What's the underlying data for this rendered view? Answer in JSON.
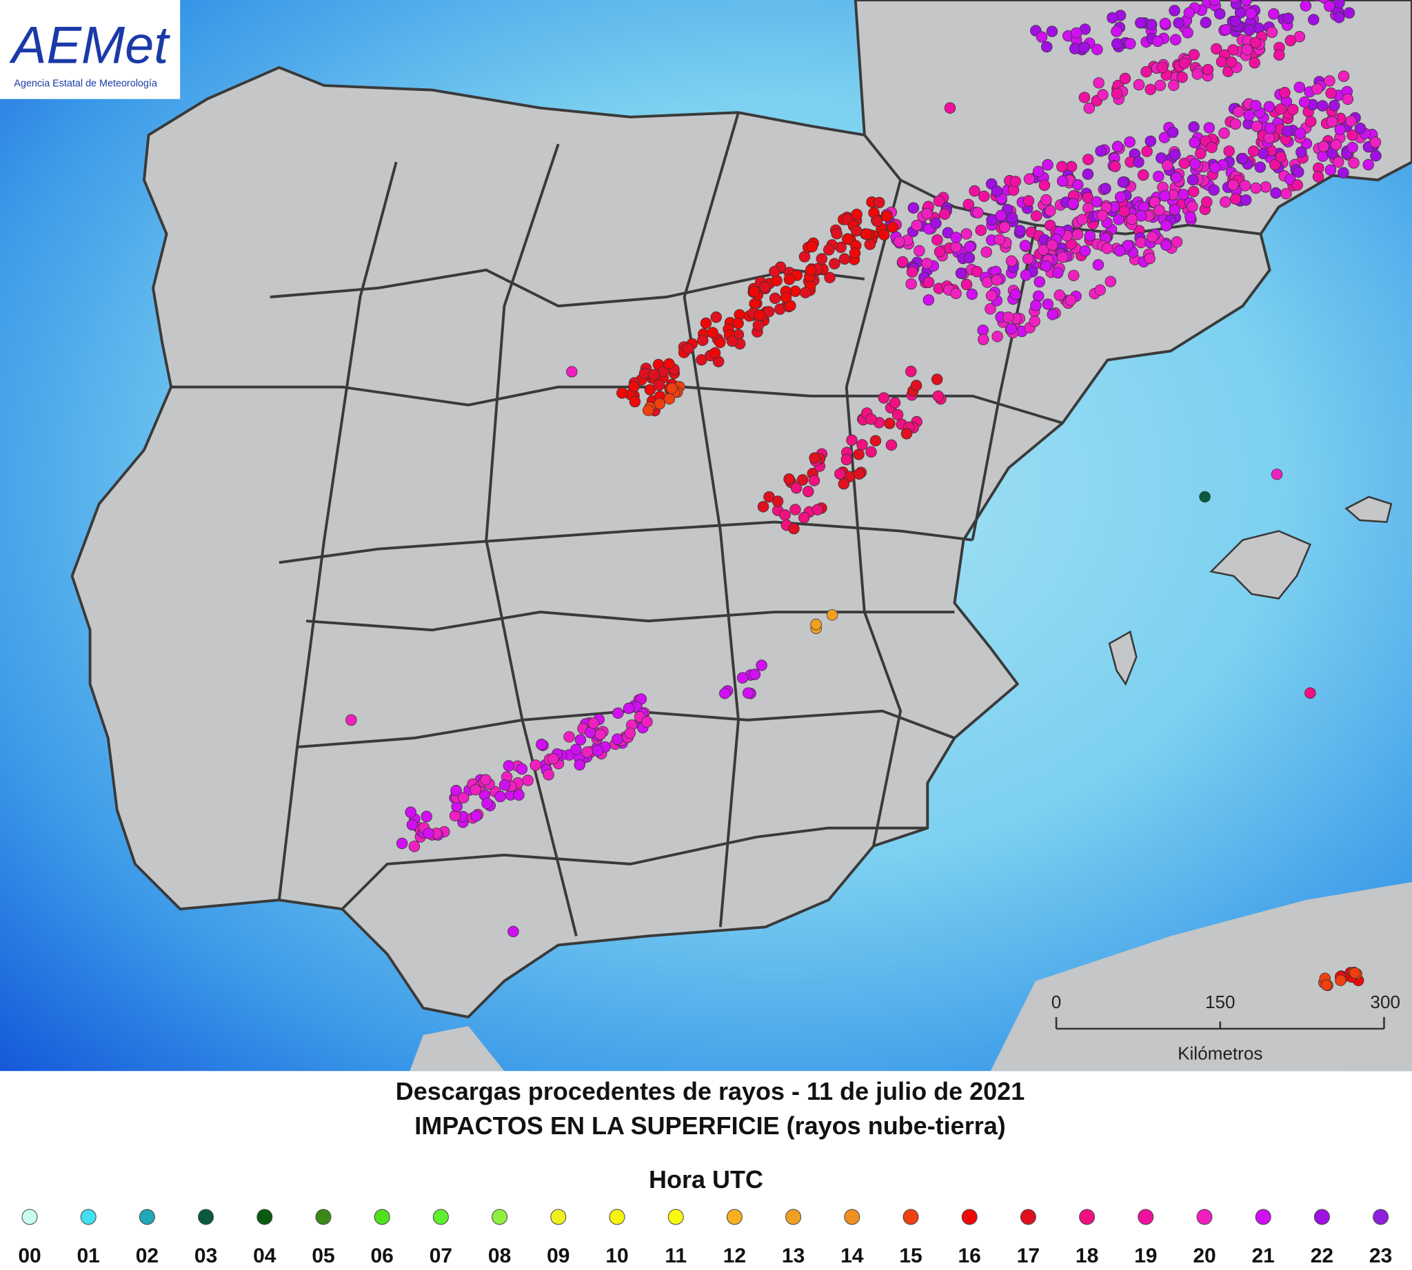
{
  "logo": {
    "title": "AEMet",
    "subtitle": "Agencia Estatal de Meteorología"
  },
  "scale_bar": {
    "ticks": [
      "0",
      "150",
      "300"
    ],
    "unit": "Kilómetros"
  },
  "title": [
    "Descargas procedentes de rayos - 11 de julio de 2021",
    "IMPACTOS EN LA SUPERFICIE (rayos nube-tierra)"
  ],
  "legend": {
    "title": "Hora UTC",
    "items": [
      {
        "label": "00",
        "color": "#c8fff0"
      },
      {
        "label": "01",
        "color": "#40e0f0"
      },
      {
        "label": "02",
        "color": "#20a8b8"
      },
      {
        "label": "03",
        "color": "#0a5a40"
      },
      {
        "label": "04",
        "color": "#0a5a10"
      },
      {
        "label": "05",
        "color": "#3a8a1a"
      },
      {
        "label": "06",
        "color": "#50e020"
      },
      {
        "label": "07",
        "color": "#60f030"
      },
      {
        "label": "08",
        "color": "#90f040"
      },
      {
        "label": "09",
        "color": "#f0f020"
      },
      {
        "label": "10",
        "color": "#f4f410"
      },
      {
        "label": "11",
        "color": "#f8f810"
      },
      {
        "label": "12",
        "color": "#f8b020"
      },
      {
        "label": "13",
        "color": "#f0a020"
      },
      {
        "label": "14",
        "color": "#f09020"
      },
      {
        "label": "15",
        "color": "#f04010"
      },
      {
        "label": "16",
        "color": "#f00808"
      },
      {
        "label": "17",
        "color": "#e01020"
      },
      {
        "label": "18",
        "color": "#f01080"
      },
      {
        "label": "19",
        "color": "#f010a0"
      },
      {
        "label": "20",
        "color": "#f020c0"
      },
      {
        "label": "21",
        "color": "#d010f0"
      },
      {
        "label": "22",
        "color": "#a010e0"
      },
      {
        "label": "23",
        "color": "#9020e0"
      }
    ]
  }
}
